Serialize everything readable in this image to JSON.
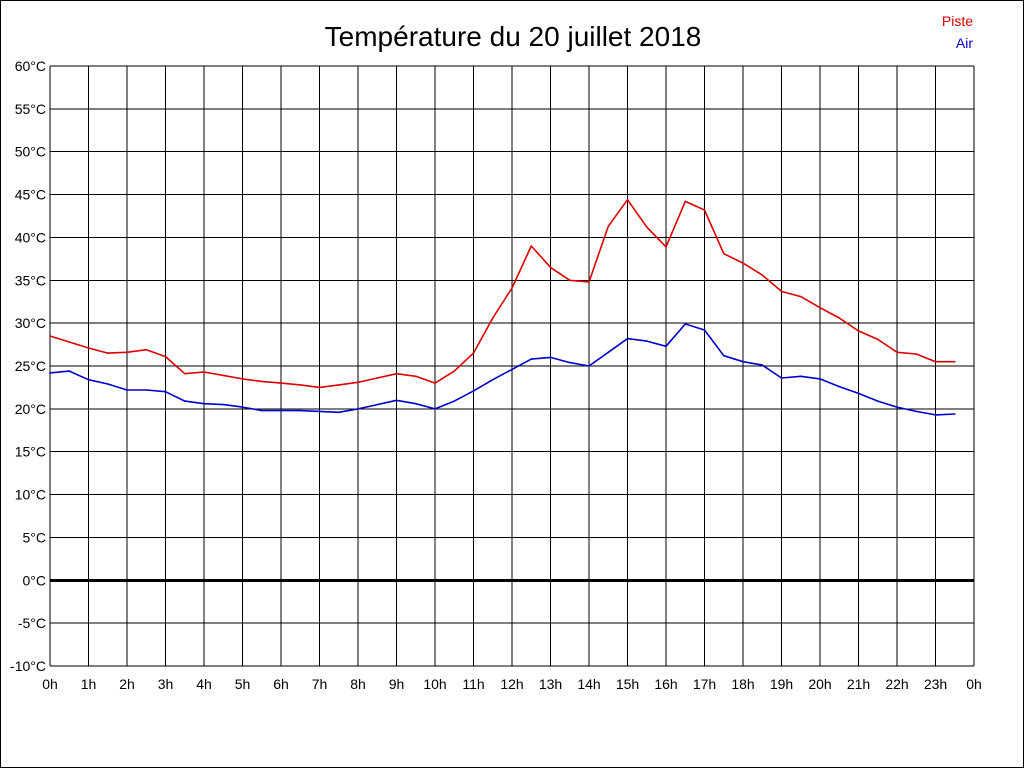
{
  "chart_data": {
    "type": "line",
    "title": "Température du 20 juillet 2018",
    "xlabel": "",
    "ylabel": "",
    "ylim": [
      -10,
      60
    ],
    "y_ticks": [
      "60°C",
      "55°C",
      "50°C",
      "45°C",
      "40°C",
      "35°C",
      "30°C",
      "25°C",
      "20°C",
      "15°C",
      "10°C",
      "5°C",
      "0°C",
      "-5°C",
      "-10°C"
    ],
    "x_tick_labels": [
      "0h",
      "1h",
      "2h",
      "3h",
      "4h",
      "5h",
      "6h",
      "7h",
      "8h",
      "9h",
      "10h",
      "11h",
      "12h",
      "13h",
      "14h",
      "15h",
      "16h",
      "17h",
      "18h",
      "19h",
      "20h",
      "21h",
      "22h",
      "23h",
      "0h"
    ],
    "grid": true,
    "legend_position": "top-right",
    "series": [
      {
        "name": "Piste",
        "color": "#dd0000",
        "x": [
          0,
          0.5,
          1,
          1.5,
          2,
          2.5,
          3,
          3.5,
          4,
          4.5,
          5,
          5.5,
          6,
          6.5,
          7,
          7.5,
          8,
          8.5,
          9,
          9.5,
          10,
          10.5,
          11,
          11.5,
          12,
          12.5,
          13,
          13.5,
          14,
          14.5,
          15,
          15.5,
          16,
          16.5,
          17,
          17.5,
          18,
          18.5,
          19,
          19.5,
          20,
          20.5,
          21,
          21.5,
          22,
          22.5,
          23,
          23.5
        ],
        "values": [
          28.5,
          27.8,
          27.1,
          26.5,
          26.6,
          26.9,
          26.1,
          24.1,
          24.3,
          23.9,
          23.5,
          23.2,
          23.0,
          22.8,
          22.5,
          22.8,
          23.1,
          23.6,
          24.1,
          23.8,
          23.0,
          24.4,
          26.5,
          30.6,
          34.1,
          39.0,
          36.5,
          35.0,
          34.8,
          41.3,
          44.4,
          41.2,
          38.9,
          44.2,
          43.2,
          38.1,
          37.0,
          35.6,
          33.7,
          33.1,
          31.8,
          30.6,
          29.1,
          28.1,
          26.6,
          26.4,
          25.5,
          25.5
        ]
      },
      {
        "name": "Air",
        "color": "#0000cc",
        "x": [
          0,
          0.5,
          1,
          1.5,
          2,
          2.5,
          3,
          3.5,
          4,
          4.5,
          5,
          5.5,
          6,
          6.5,
          7,
          7.5,
          8,
          8.5,
          9,
          9.5,
          10,
          10.5,
          11,
          11.5,
          12,
          12.5,
          13,
          13.5,
          14,
          14.5,
          15,
          15.5,
          16,
          16.5,
          17,
          17.5,
          18,
          18.5,
          19,
          19.5,
          20,
          20.5,
          21,
          21.5,
          22,
          22.5,
          23,
          23.5
        ],
        "values": [
          24.2,
          24.4,
          23.4,
          22.9,
          22.2,
          22.2,
          22.0,
          20.9,
          20.6,
          20.5,
          20.2,
          19.8,
          19.8,
          19.8,
          19.7,
          19.6,
          20.0,
          20.5,
          21.0,
          20.6,
          20.0,
          20.9,
          22.1,
          23.4,
          24.6,
          25.8,
          26.0,
          25.4,
          25.0,
          26.6,
          28.2,
          27.9,
          27.3,
          29.9,
          29.2,
          26.2,
          25.5,
          25.1,
          23.6,
          23.8,
          23.5,
          22.6,
          21.8,
          20.9,
          20.2,
          19.7,
          19.3,
          19.4
        ]
      }
    ]
  }
}
